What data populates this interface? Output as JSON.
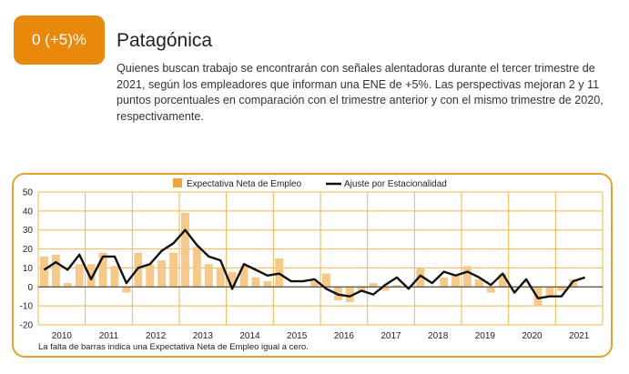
{
  "header": {
    "badge": "0 (+5)%",
    "title": "Patagónica",
    "description": "Quienes buscan trabajo se encontrarán con señales alentadoras durante el tercer trimestre de 2021, según los empleadores que informan una ENE de +5%. Las perspectivas mejoran 2 y 11 puntos porcentuales en comparación con el trimestre anterior y con el mismo trimestre de 2020, respectivamente."
  },
  "colors": {
    "accent": "#e8890c",
    "bar": "#f5c98a",
    "grid": "#f0b650",
    "line": "#111111"
  },
  "chart_data": {
    "type": "bar",
    "note": "La falta de barras indica una Expectativa Neta de Empleo igual a cero.",
    "legend_position": "top",
    "grid": true,
    "ylim": [
      -20,
      50
    ],
    "yticks": [
      "50",
      "40",
      "30",
      "20",
      "10",
      "0",
      "-10",
      "-20"
    ],
    "xtick_labels": [
      "2010",
      "2011",
      "2012",
      "2013",
      "2014",
      "2015",
      "2016",
      "2017",
      "2018",
      "2019",
      "2020",
      "2021"
    ],
    "x_unit": "quarter, 2010 Q1 – 2021 Q3",
    "series": [
      {
        "name": "Expectativa Neta de Empleo",
        "type": "bar",
        "values": [
          16,
          17,
          2,
          12,
          12,
          18,
          11,
          -3,
          18,
          12,
          14,
          18,
          39,
          21,
          12,
          10,
          8,
          11,
          5,
          3,
          15,
          0,
          0,
          3,
          7,
          -7,
          -8,
          -2,
          2,
          -2,
          1,
          0,
          10,
          0,
          5,
          6,
          11,
          4,
          -3,
          7,
          0,
          0,
          -10,
          -5,
          -2,
          4,
          0
        ]
      },
      {
        "name": "Ajuste por Estacionalidad",
        "type": "line",
        "values": [
          9,
          13,
          9,
          17,
          4,
          16,
          16,
          2,
          10,
          12,
          19,
          23,
          30,
          22,
          16,
          14,
          -1,
          12,
          9,
          6,
          7,
          3,
          3,
          4,
          -1,
          -4,
          -5,
          -2,
          -4,
          1,
          5,
          -1,
          6,
          2,
          8,
          6,
          8,
          5,
          1,
          7,
          -3,
          4,
          -6,
          -5,
          -5,
          3,
          5
        ]
      }
    ]
  }
}
